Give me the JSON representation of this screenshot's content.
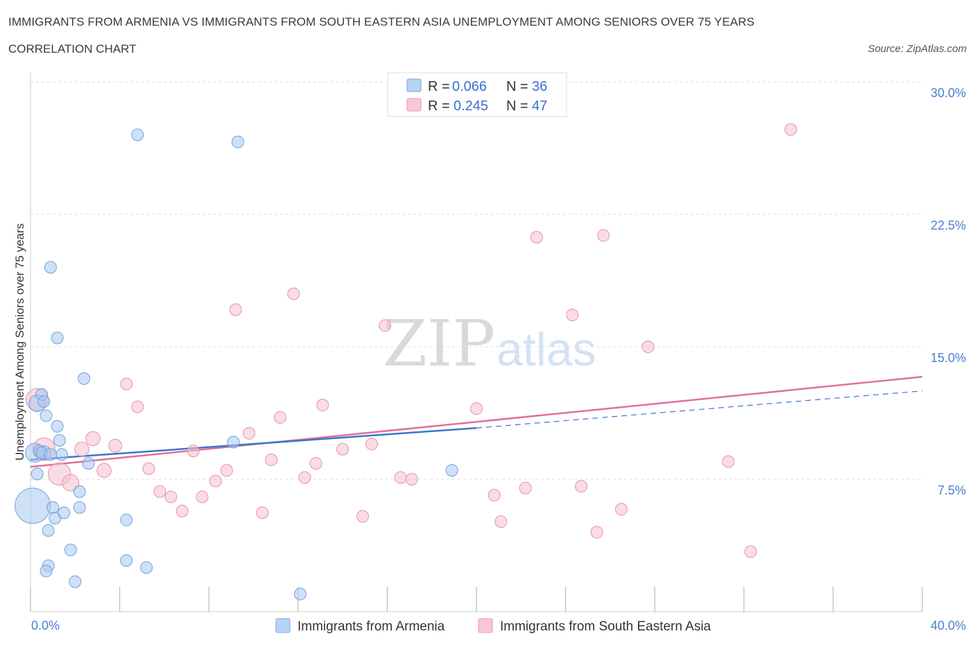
{
  "header": {
    "title": "IMMIGRANTS FROM ARMENIA VS IMMIGRANTS FROM SOUTH EASTERN ASIA UNEMPLOYMENT AMONG SENIORS OVER 75 YEARS",
    "subtitle": "CORRELATION CHART",
    "source": "Source: ZipAtlas.com"
  },
  "watermark": {
    "zip": "ZIP",
    "atlas": "atlas"
  },
  "stats_legend": {
    "row1": {
      "r_label": "R =",
      "r_value": "0.066",
      "n_label": "N =",
      "n_value": "36"
    },
    "row2": {
      "r_label": "R =",
      "r_value": "0.245",
      "n_label": "N =",
      "n_value": "47"
    }
  },
  "colors": {
    "armenia_fill": "#a8c8f0",
    "armenia_stroke": "#6f9fe0",
    "armenia_line": "#3a74d0",
    "sea_fill": "#f6bfd0",
    "sea_stroke": "#e890ad",
    "sea_line": "#e0709a",
    "grid": "#dddddd",
    "tick_text": "#4a7fd0"
  },
  "chart_data": {
    "type": "scatter",
    "title": "IMMIGRANTS FROM ARMENIA VS IMMIGRANTS FROM SOUTH EASTERN ASIA UNEMPLOYMENT AMONG SENIORS OVER 75 YEARS",
    "xlabel": "",
    "ylabel": "Unemployment Among Seniors over 75 years",
    "xlim": [
      0,
      40
    ],
    "ylim": [
      0,
      30
    ],
    "x_tick_labels": [
      "0.0%",
      "40.0%"
    ],
    "y_ticks": [
      7.5,
      15.0,
      22.5,
      30.0
    ],
    "y_tick_labels": [
      "7.5%",
      "15.0%",
      "22.5%",
      "30.0%"
    ],
    "legend_position": "top-center",
    "series": [
      {
        "name": "Immigrants from Armenia",
        "R": 0.066,
        "N": 36,
        "trend": {
          "x": [
            0,
            20
          ],
          "y": [
            8.6,
            10.4
          ]
        },
        "trend_dashed": {
          "x": [
            20,
            40
          ],
          "y": [
            10.4,
            12.5
          ]
        },
        "points": [
          {
            "x": 0.1,
            "y": 6.0,
            "size": 3.0
          },
          {
            "x": 0.2,
            "y": 9.0,
            "size": 1.6
          },
          {
            "x": 0.3,
            "y": 11.8,
            "size": 1.4
          },
          {
            "x": 0.5,
            "y": 12.3,
            "size": 1.0
          },
          {
            "x": 0.3,
            "y": 7.8,
            "size": 1.0
          },
          {
            "x": 0.6,
            "y": 9.0,
            "size": 1.2
          },
          {
            "x": 0.6,
            "y": 11.9,
            "size": 1.0
          },
          {
            "x": 0.7,
            "y": 11.1,
            "size": 1.0
          },
          {
            "x": 0.9,
            "y": 19.5,
            "size": 1.0
          },
          {
            "x": 1.2,
            "y": 15.5,
            "size": 1.0
          },
          {
            "x": 1.2,
            "y": 10.5,
            "size": 1.0
          },
          {
            "x": 1.3,
            "y": 9.7,
            "size": 1.0
          },
          {
            "x": 1.4,
            "y": 8.9,
            "size": 1.0
          },
          {
            "x": 1.0,
            "y": 5.9,
            "size": 1.0
          },
          {
            "x": 1.1,
            "y": 5.3,
            "size": 1.0
          },
          {
            "x": 1.5,
            "y": 5.6,
            "size": 1.0
          },
          {
            "x": 0.8,
            "y": 4.6,
            "size": 1.0
          },
          {
            "x": 0.8,
            "y": 2.6,
            "size": 1.0
          },
          {
            "x": 0.7,
            "y": 2.3,
            "size": 1.0
          },
          {
            "x": 1.8,
            "y": 3.5,
            "size": 1.0
          },
          {
            "x": 2.0,
            "y": 1.7,
            "size": 1.0
          },
          {
            "x": 2.2,
            "y": 5.9,
            "size": 1.0
          },
          {
            "x": 2.2,
            "y": 6.8,
            "size": 1.0
          },
          {
            "x": 2.4,
            "y": 13.2,
            "size": 1.0
          },
          {
            "x": 2.6,
            "y": 8.4,
            "size": 1.0
          },
          {
            "x": 4.8,
            "y": 27.0,
            "size": 1.0
          },
          {
            "x": 9.3,
            "y": 26.6,
            "size": 1.0
          },
          {
            "x": 4.3,
            "y": 5.2,
            "size": 1.0
          },
          {
            "x": 4.3,
            "y": 2.9,
            "size": 1.0
          },
          {
            "x": 5.2,
            "y": 2.5,
            "size": 1.0
          },
          {
            "x": 9.1,
            "y": 9.6,
            "size": 1.0
          },
          {
            "x": 12.1,
            "y": 1.0,
            "size": 1.0
          },
          {
            "x": 18.9,
            "y": 8.0,
            "size": 1.0
          },
          {
            "x": 0.4,
            "y": 9.1,
            "size": 1.0
          },
          {
            "x": 0.5,
            "y": 9.0,
            "size": 1.0
          },
          {
            "x": 0.9,
            "y": 8.9,
            "size": 1.0
          }
        ]
      },
      {
        "name": "Immigrants from South Eastern Asia",
        "R": 0.245,
        "N": 47,
        "trend": {
          "x": [
            0,
            40
          ],
          "y": [
            8.2,
            13.3
          ]
        },
        "points": [
          {
            "x": 0.3,
            "y": 12.0,
            "size": 1.9
          },
          {
            "x": 0.6,
            "y": 9.2,
            "size": 1.9
          },
          {
            "x": 1.3,
            "y": 7.8,
            "size": 1.9
          },
          {
            "x": 1.8,
            "y": 7.3,
            "size": 1.4
          },
          {
            "x": 2.3,
            "y": 9.2,
            "size": 1.2
          },
          {
            "x": 2.8,
            "y": 9.8,
            "size": 1.2
          },
          {
            "x": 3.3,
            "y": 8.0,
            "size": 1.2
          },
          {
            "x": 3.8,
            "y": 9.4,
            "size": 1.1
          },
          {
            "x": 4.3,
            "y": 12.9,
            "size": 1.0
          },
          {
            "x": 4.8,
            "y": 11.6,
            "size": 1.0
          },
          {
            "x": 5.3,
            "y": 8.1,
            "size": 1.0
          },
          {
            "x": 5.8,
            "y": 6.8,
            "size": 1.0
          },
          {
            "x": 6.3,
            "y": 6.5,
            "size": 1.0
          },
          {
            "x": 6.8,
            "y": 5.7,
            "size": 1.0
          },
          {
            "x": 7.3,
            "y": 9.1,
            "size": 1.0
          },
          {
            "x": 7.7,
            "y": 6.5,
            "size": 1.0
          },
          {
            "x": 8.3,
            "y": 7.4,
            "size": 1.0
          },
          {
            "x": 8.8,
            "y": 8.0,
            "size": 1.0
          },
          {
            "x": 9.2,
            "y": 17.1,
            "size": 1.0
          },
          {
            "x": 9.8,
            "y": 10.1,
            "size": 1.0
          },
          {
            "x": 10.4,
            "y": 5.6,
            "size": 1.0
          },
          {
            "x": 10.8,
            "y": 8.6,
            "size": 1.0
          },
          {
            "x": 11.2,
            "y": 11.0,
            "size": 1.0
          },
          {
            "x": 11.8,
            "y": 18.0,
            "size": 1.0
          },
          {
            "x": 12.3,
            "y": 7.6,
            "size": 1.0
          },
          {
            "x": 12.8,
            "y": 8.4,
            "size": 1.0
          },
          {
            "x": 13.1,
            "y": 11.7,
            "size": 1.0
          },
          {
            "x": 14.0,
            "y": 9.2,
            "size": 1.0
          },
          {
            "x": 14.9,
            "y": 5.4,
            "size": 1.0
          },
          {
            "x": 15.3,
            "y": 9.5,
            "size": 1.0
          },
          {
            "x": 15.9,
            "y": 16.2,
            "size": 1.0
          },
          {
            "x": 16.6,
            "y": 7.6,
            "size": 1.0
          },
          {
            "x": 17.1,
            "y": 7.5,
            "size": 1.0
          },
          {
            "x": 20.0,
            "y": 11.5,
            "size": 1.0
          },
          {
            "x": 20.8,
            "y": 6.6,
            "size": 1.0
          },
          {
            "x": 21.1,
            "y": 5.1,
            "size": 1.0
          },
          {
            "x": 22.2,
            "y": 7.0,
            "size": 1.0
          },
          {
            "x": 22.7,
            "y": 21.2,
            "size": 1.0
          },
          {
            "x": 24.3,
            "y": 16.8,
            "size": 1.0
          },
          {
            "x": 24.7,
            "y": 7.1,
            "size": 1.0
          },
          {
            "x": 25.4,
            "y": 4.5,
            "size": 1.0
          },
          {
            "x": 25.7,
            "y": 21.3,
            "size": 1.0
          },
          {
            "x": 26.5,
            "y": 5.8,
            "size": 1.0
          },
          {
            "x": 27.7,
            "y": 15.0,
            "size": 1.0
          },
          {
            "x": 31.3,
            "y": 8.5,
            "size": 1.0
          },
          {
            "x": 32.3,
            "y": 3.4,
            "size": 1.0
          },
          {
            "x": 34.1,
            "y": 27.3,
            "size": 1.0
          }
        ]
      }
    ]
  },
  "bottom_legend": {
    "item1": "Immigrants from Armenia",
    "item2": "Immigrants from South Eastern Asia"
  }
}
